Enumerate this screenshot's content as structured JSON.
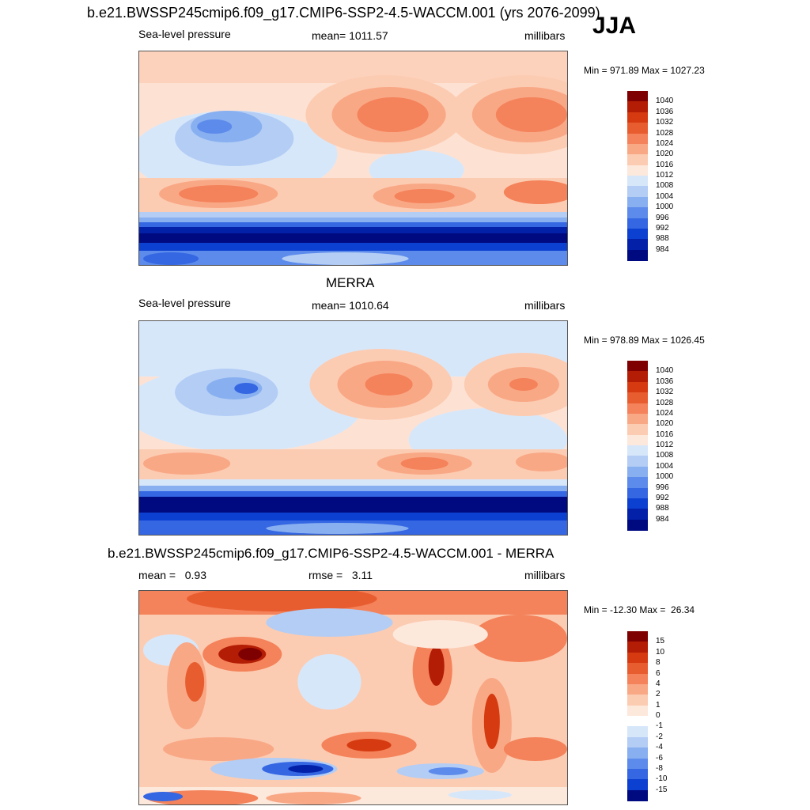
{
  "season": "JJA",
  "panels": [
    {
      "title": "b.e21.BWSSP245cmip6.f09_g17.CMIP6-SSP2-4.5-WACCM.001 (yrs 2076-2099)",
      "left_label": "Sea-level pressure",
      "center_label": "mean= 1011.57",
      "units": "millibars",
      "minmax": "Min = 971.89 Max = 1027.23"
    },
    {
      "title": "MERRA",
      "left_label": "Sea-level pressure",
      "center_label": "mean= 1010.64",
      "units": "millibars",
      "minmax": "Min = 978.89 Max = 1026.45"
    },
    {
      "title": "b.e21.BWSSP245cmip6.f09_g17.CMIP6-SSP2-4.5-WACCM.001 - MERRA",
      "left_label": "mean =   0.93",
      "center_label": "rmse =   3.11",
      "units": "millibars",
      "minmax": "Min = -12.30 Max =  26.34"
    }
  ],
  "colorbars": {
    "psl": {
      "labels": [
        "1040",
        "1036",
        "1032",
        "1028",
        "1024",
        "1020",
        "1016",
        "1012",
        "1008",
        "1004",
        "1000",
        "996",
        "992",
        "988",
        "984"
      ],
      "colors": [
        "#7f0000",
        "#b31d05",
        "#d63a10",
        "#e85d30",
        "#f4825a",
        "#f9a886",
        "#fcccb2",
        "#fde8dc",
        "#d7e7fa",
        "#b3cdf5",
        "#88aff0",
        "#5d8beb",
        "#3567e3",
        "#0c40d0",
        "#0221a8",
        "#000a80"
      ]
    },
    "diff": {
      "labels": [
        "15",
        "10",
        "8",
        "6",
        "4",
        "2",
        "1",
        "0",
        "-1",
        "-2",
        "-4",
        "-6",
        "-8",
        "-10",
        "-15"
      ],
      "colors": [
        "#7f0000",
        "#b31d05",
        "#d63a10",
        "#e85d30",
        "#f4825a",
        "#f9a886",
        "#fcccb2",
        "#fde8dc",
        "#ffffff",
        "#d7e7fa",
        "#b3cdf5",
        "#88aff0",
        "#5d8beb",
        "#3567e3",
        "#0c40d0",
        "#000a80"
      ]
    }
  },
  "chart_data": [
    {
      "type": "heatmap",
      "title": "b.e21.BWSSP245cmip6.f09_g17.CMIP6-SSP2-4.5-WACCM.001 (yrs 2076-2099)",
      "variable": "Sea-level pressure",
      "units": "millibars",
      "mean": 1011.57,
      "min": 971.89,
      "max": 1027.23,
      "contour_levels": [
        984,
        988,
        992,
        996,
        1000,
        1004,
        1008,
        1012,
        1016,
        1020,
        1024,
        1028,
        1032,
        1036,
        1040
      ]
    },
    {
      "type": "heatmap",
      "title": "MERRA",
      "variable": "Sea-level pressure",
      "units": "millibars",
      "mean": 1010.64,
      "min": 978.89,
      "max": 1026.45,
      "contour_levels": [
        984,
        988,
        992,
        996,
        1000,
        1004,
        1008,
        1012,
        1016,
        1020,
        1024,
        1028,
        1032,
        1036,
        1040
      ]
    },
    {
      "type": "heatmap",
      "title": "b.e21.BWSSP245cmip6.f09_g17.CMIP6-SSP2-4.5-WACCM.001 - MERRA",
      "units": "millibars",
      "mean": 0.93,
      "rmse": 3.11,
      "min": -12.3,
      "max": 26.34,
      "contour_levels": [
        -15,
        -10,
        -8,
        -6,
        -4,
        -2,
        -1,
        0,
        1,
        2,
        4,
        6,
        8,
        10,
        15
      ]
    }
  ]
}
